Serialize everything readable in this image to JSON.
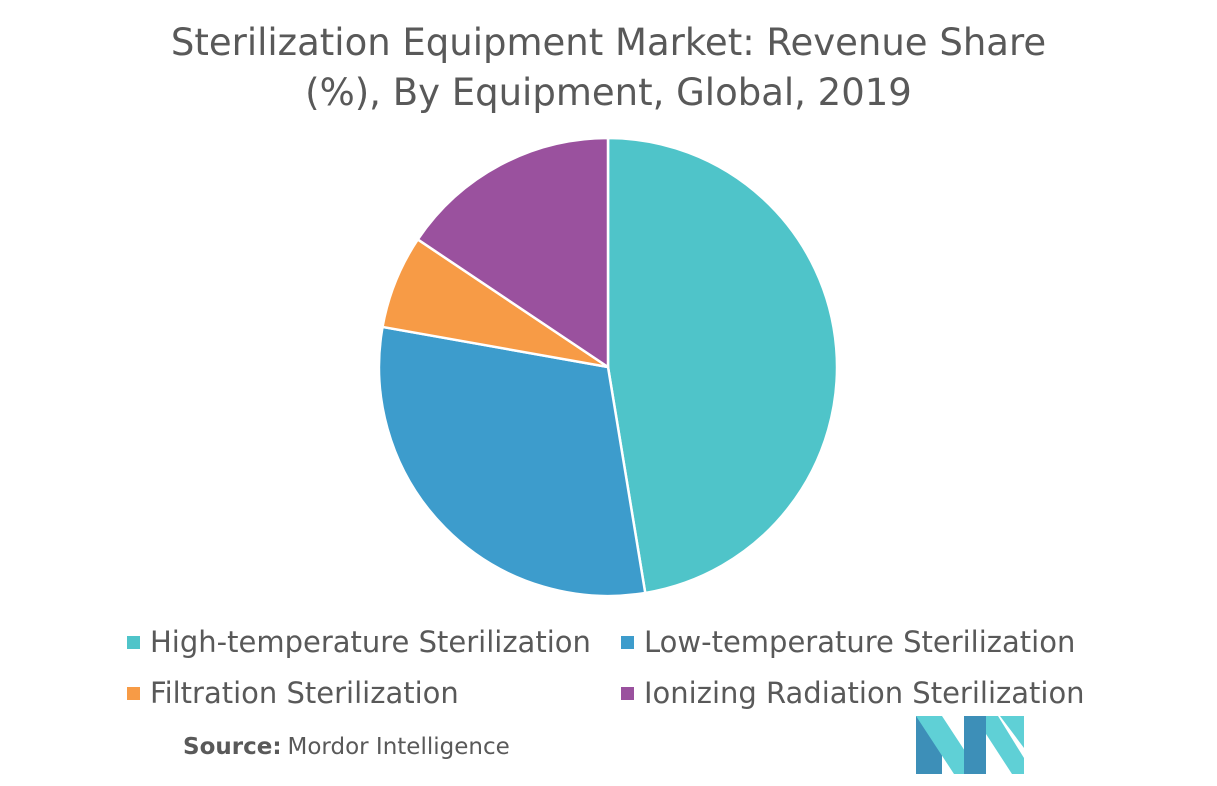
{
  "chart_data": {
    "type": "pie",
    "title_lines": [
      "Sterilization Equipment Market: Revenue Share",
      "(%), By Equipment, Global, 2019"
    ],
    "slices": [
      {
        "name": "High-temperature Sterilization",
        "value": 47.4,
        "color": "#4fc4c9"
      },
      {
        "name": "Low-temperature Sterilization",
        "value": 30.4,
        "color": "#3d9ccc"
      },
      {
        "name": "Filtration Sterilization",
        "value": 6.6,
        "color": "#f79b46"
      },
      {
        "name": "Ionizing Radiation Sterilization",
        "value": 15.6,
        "color": "#9a519e"
      }
    ],
    "start_angle_deg": 0,
    "direction": "clockwise",
    "legend_placement": "bottom"
  },
  "source": {
    "key": "Source:",
    "value": "Mordor Intelligence"
  },
  "logo": {
    "colors": {
      "dark": "#3d8fb8",
      "light": "#5fd0d6"
    }
  }
}
